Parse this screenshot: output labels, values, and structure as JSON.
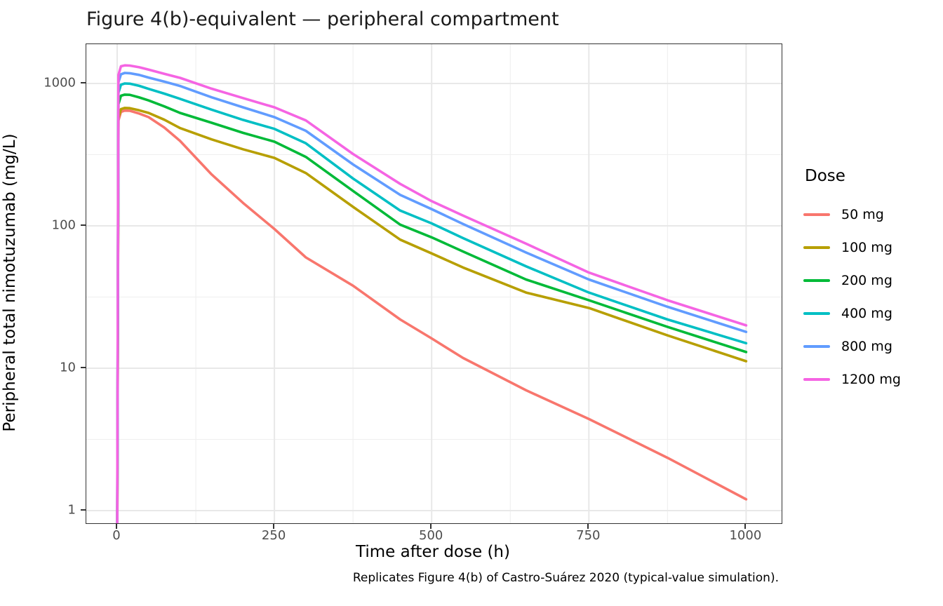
{
  "title": "Figure 4(b)-equivalent — peripheral compartment",
  "caption": "Replicates Figure 4(b) of Castro-Suárez 2020 (typical-value simulation).",
  "axes": {
    "x": {
      "label": "Time after dose (h)",
      "major_ticks": [
        0,
        250,
        500,
        750,
        1000
      ],
      "minor_ticks": [
        125,
        375,
        625,
        875
      ]
    },
    "y": {
      "label": "Peripheral total nimotuzumab (mg/L)",
      "scale": "log10",
      "major_ticks": [
        1,
        10,
        100,
        1000
      ],
      "minor_ticks": [
        3.162,
        31.62,
        316.2
      ]
    }
  },
  "legend": {
    "title": "Dose",
    "entries": [
      {
        "label": "50 mg",
        "color": "#F8766D"
      },
      {
        "label": "100 mg",
        "color": "#B79F00"
      },
      {
        "label": "200 mg",
        "color": "#00BA38"
      },
      {
        "label": "400 mg",
        "color": "#00BFC4"
      },
      {
        "label": "800 mg",
        "color": "#619CFF"
      },
      {
        "label": "1200 mg",
        "color": "#F564E3"
      }
    ]
  },
  "chart_data": {
    "type": "line",
    "title": "Figure 4(b)-equivalent — peripheral compartment",
    "xlabel": "Time after dose (h)",
    "ylabel": "Peripheral total nimotuzumab (mg/L)",
    "xlim": [
      -49,
      1056
    ],
    "ylim": [
      0.82,
      1890
    ],
    "y_scale": "log",
    "grid": true,
    "legend_position": "right",
    "x": [
      0,
      2,
      6,
      12,
      20,
      35,
      50,
      75,
      100,
      150,
      200,
      250,
      300,
      375,
      450,
      500,
      550,
      650,
      750,
      875,
      1000
    ],
    "series": [
      {
        "name": "50 mg",
        "color": "#F8766D",
        "values": [
          0.4,
          550,
          632,
          645,
          643,
          615,
          580,
          490,
          395,
          230,
          145,
          95,
          60,
          38,
          22,
          16.2,
          11.8,
          7.0,
          4.4,
          2.35,
          1.2
        ]
      },
      {
        "name": "100 mg",
        "color": "#B79F00",
        "values": [
          0.4,
          575,
          660,
          673,
          671,
          648,
          621,
          556,
          486,
          405,
          345,
          300,
          235,
          136,
          80,
          64,
          51,
          34,
          26.5,
          17,
          11.2
        ]
      },
      {
        "name": "200 mg",
        "color": "#00BA38",
        "values": [
          0.45,
          715,
          820,
          835,
          832,
          798,
          760,
          690,
          621,
          530,
          450,
          390,
          305,
          176,
          102,
          83,
          66,
          42,
          30,
          19.5,
          13
        ]
      },
      {
        "name": "400 mg",
        "color": "#00BFC4",
        "values": [
          0.5,
          860,
          980,
          1000,
          997,
          962,
          916,
          848,
          780,
          655,
          555,
          480,
          380,
          215,
          128,
          104,
          82,
          52,
          34,
          22,
          15
        ]
      },
      {
        "name": "800 mg",
        "color": "#619CFF",
        "values": [
          0.55,
          1020,
          1160,
          1185,
          1180,
          1148,
          1100,
          1030,
          960,
          800,
          680,
          580,
          465,
          270,
          165,
          131,
          103,
          65,
          42,
          27,
          18
        ]
      },
      {
        "name": "1200 mg",
        "color": "#F564E3",
        "values": [
          0.6,
          1150,
          1320,
          1340,
          1335,
          1300,
          1250,
          1170,
          1095,
          920,
          790,
          680,
          550,
          320,
          197,
          149,
          118,
          75,
          47,
          30,
          20
        ]
      }
    ]
  }
}
